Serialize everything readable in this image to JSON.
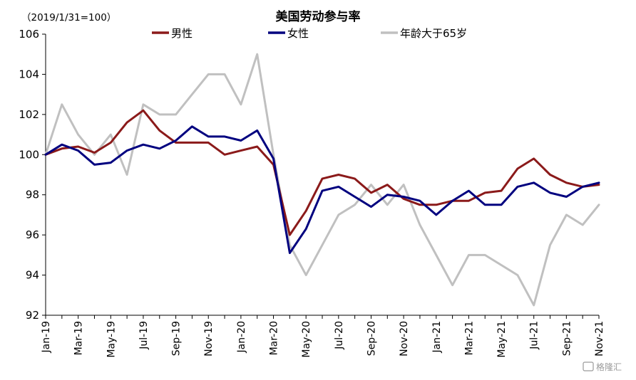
{
  "chart_data": {
    "type": "line",
    "title": "美国劳动参与率",
    "unit_note": "（2019/1/31=100）",
    "ylim": [
      92,
      106
    ],
    "yticks": [
      92,
      94,
      96,
      98,
      100,
      102,
      104,
      106
    ],
    "categories": [
      "Jan-19",
      "Feb-19",
      "Mar-19",
      "Apr-19",
      "May-19",
      "Jun-19",
      "Jul-19",
      "Aug-19",
      "Sep-19",
      "Oct-19",
      "Nov-19",
      "Dec-19",
      "Jan-20",
      "Feb-20",
      "Mar-20",
      "Apr-20",
      "May-20",
      "Jun-20",
      "Jul-20",
      "Aug-20",
      "Sep-20",
      "Oct-20",
      "Nov-20",
      "Dec-20",
      "Jan-21",
      "Feb-21",
      "Mar-21",
      "Apr-21",
      "May-21",
      "Jun-21",
      "Jul-21",
      "Aug-21",
      "Sep-21",
      "Oct-21",
      "Nov-21"
    ],
    "xtick_labels": [
      "Jan-19",
      "Mar-19",
      "May-19",
      "Jul-19",
      "Sep-19",
      "Nov-19",
      "Jan-20",
      "Mar-20",
      "May-20",
      "Jul-20",
      "Sep-20",
      "Nov-20",
      "Jan-21",
      "Mar-21",
      "May-21",
      "Jul-21",
      "Sep-21",
      "Nov-21"
    ],
    "series": [
      {
        "name": "男性",
        "color": "#8B1A1A",
        "values": [
          100.0,
          100.3,
          100.4,
          100.1,
          100.6,
          101.6,
          102.2,
          101.2,
          100.6,
          100.6,
          100.6,
          100.0,
          100.2,
          100.4,
          99.5,
          96.0,
          97.2,
          98.8,
          99.0,
          98.8,
          98.1,
          98.5,
          97.8,
          97.5,
          97.5,
          97.7,
          97.7,
          98.1,
          98.2,
          99.3,
          99.8,
          99.0,
          98.6,
          98.4,
          98.5
        ]
      },
      {
        "name": "女性",
        "color": "#00007F",
        "values": [
          100.0,
          100.5,
          100.2,
          99.5,
          99.6,
          100.2,
          100.5,
          100.3,
          100.7,
          101.4,
          100.9,
          100.9,
          100.7,
          101.2,
          99.8,
          95.1,
          96.3,
          98.2,
          98.4,
          97.9,
          97.4,
          98.0,
          97.9,
          97.7,
          97.0,
          97.7,
          98.2,
          97.5,
          97.5,
          98.4,
          98.6,
          98.1,
          97.9,
          98.4,
          98.6
        ]
      },
      {
        "name": "年龄大于65岁",
        "color": "#C0C0C0",
        "values": [
          100.0,
          102.5,
          101.0,
          100.0,
          101.0,
          99.0,
          102.5,
          102.0,
          102.0,
          103.0,
          104.0,
          104.0,
          102.5,
          105.0,
          100.0,
          95.5,
          94.0,
          95.5,
          97.0,
          97.5,
          98.5,
          97.5,
          98.5,
          96.5,
          95.0,
          93.5,
          95.0,
          95.0,
          94.5,
          94.0,
          92.5,
          95.5,
          97.0,
          96.5,
          97.5
        ]
      }
    ],
    "grid": false,
    "legend_position": "top-center"
  },
  "watermark_text": "格隆汇"
}
